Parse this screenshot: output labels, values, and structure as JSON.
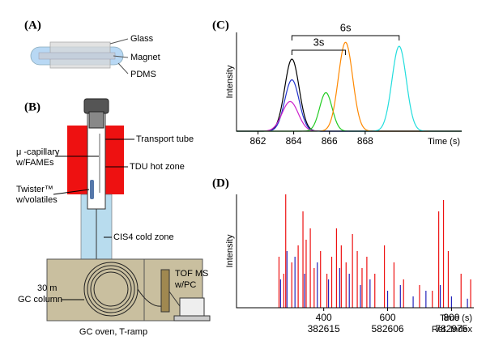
{
  "panels": {
    "a": "(A)",
    "b": "(B)",
    "c": "(C)",
    "d": "(D)"
  },
  "twister_labels": [
    "Glass",
    "Magnet",
    "PDMS"
  ],
  "setup": {
    "transport_tube": "Transport tube",
    "capillary": [
      "μ -capillary",
      "w/FAMEs"
    ],
    "tdu": "TDU hot zone",
    "twister": [
      "Twister™",
      "w/volatiles"
    ],
    "cis": "CIS4 cold zone",
    "column": [
      "30 m",
      "GC column"
    ],
    "tof": [
      "TOF MS",
      "w/PC"
    ],
    "oven": "GC oven, T-ramp"
  },
  "chart_data": [
    {
      "type": "peaks",
      "ylabel": "Intensity",
      "xlabel": "Time (s)",
      "xlim": [
        860.8,
        873.4
      ],
      "xticks": [
        862,
        864,
        866,
        868
      ],
      "ylim": [
        0,
        100
      ],
      "annotations": [
        "3s",
        "6s"
      ],
      "series": [
        {
          "color": "#000000",
          "center": 863.9,
          "height": 73,
          "width": 0.4
        },
        {
          "color": "#2233cc",
          "center": 863.9,
          "height": 52,
          "width": 0.4
        },
        {
          "color": "#cc22cc",
          "center": 863.8,
          "height": 30,
          "width": 0.45
        },
        {
          "color": "#22cc22",
          "center": 865.8,
          "height": 39,
          "width": 0.35
        },
        {
          "color": "#ff8800",
          "center": 866.9,
          "height": 90,
          "width": 0.4
        },
        {
          "color": "#22dddd",
          "center": 869.9,
          "height": 86,
          "width": 0.4
        }
      ]
    },
    {
      "type": "spikes",
      "ylabel": "Intensity",
      "xlabel": "Time (s)",
      "x2label": "Ret. Index",
      "xlim": [
        127,
        870
      ],
      "xticks": [
        400,
        600,
        800
      ],
      "x2ticklabels": [
        382615,
        582606,
        782975
      ],
      "ylim": [
        0,
        100
      ],
      "series": [
        {
          "color": "#2222bb",
          "x": [
            265,
            285,
            310,
            340,
            380,
            415,
            450,
            480,
            515,
            545,
            600,
            640,
            680,
            720,
            765,
            800,
            850
          ],
          "values": [
            25,
            50,
            45,
            30,
            40,
            25,
            35,
            30,
            20,
            25,
            15,
            20,
            10,
            15,
            20,
            10,
            8
          ]
        },
        {
          "color": "#ee1111",
          "x": [
            260,
            275,
            281,
            300,
            320,
            335,
            345,
            358,
            370,
            390,
            410,
            425,
            440,
            455,
            470,
            490,
            505,
            520,
            535,
            560,
            590,
            620,
            650,
            700,
            740,
            760,
            775,
            790,
            830,
            860
          ],
          "values": [
            45,
            30,
            100,
            40,
            55,
            85,
            60,
            70,
            35,
            50,
            30,
            45,
            70,
            55,
            40,
            65,
            50,
            35,
            45,
            30,
            55,
            40,
            25,
            20,
            15,
            85,
            95,
            50,
            30,
            25
          ]
        }
      ]
    }
  ]
}
